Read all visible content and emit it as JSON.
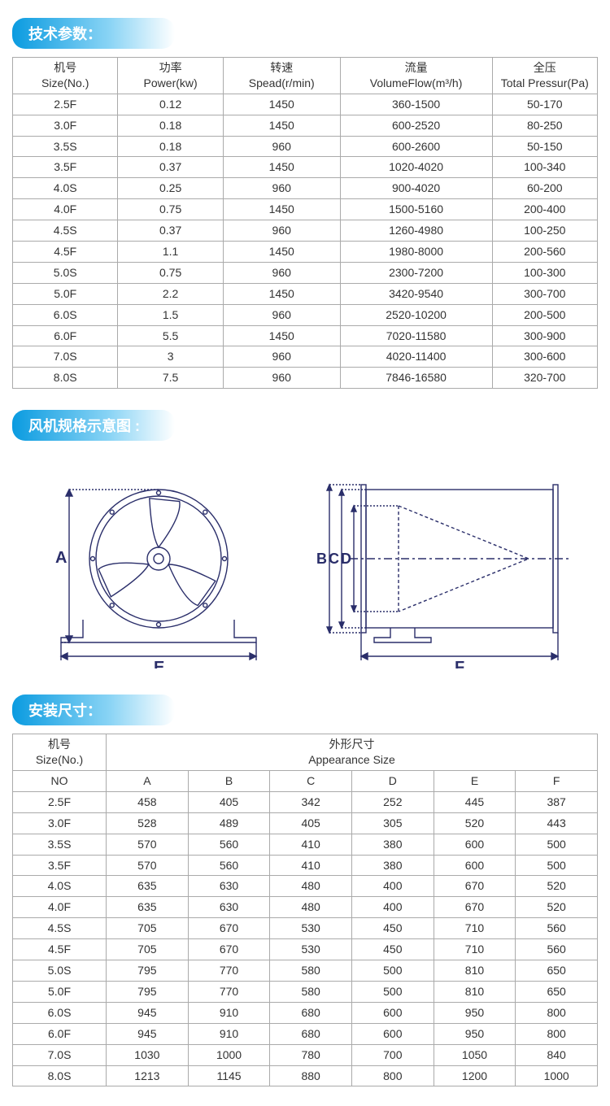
{
  "headers": {
    "tech_params": "技术参数：",
    "fan_diagram": "风机规格示意图 :",
    "install_dims": "安装尺寸："
  },
  "spec_table": {
    "columns": [
      {
        "cn": "机号",
        "en": "Size(No.)"
      },
      {
        "cn": "功率",
        "en": "Power(kw)"
      },
      {
        "cn": "转速",
        "en": "Spead(r/min)"
      },
      {
        "cn": "流量",
        "en": "VolumeFlow(m³/h)"
      },
      {
        "cn": "全压",
        "en": "Total Pressur(Pa)"
      }
    ],
    "rows": [
      [
        "2.5F",
        "0.12",
        "1450",
        "360-1500",
        "50-170"
      ],
      [
        "3.0F",
        "0.18",
        "1450",
        "600-2520",
        "80-250"
      ],
      [
        "3.5S",
        "0.18",
        "960",
        "600-2600",
        "50-150"
      ],
      [
        "3.5F",
        "0.37",
        "1450",
        "1020-4020",
        "100-340"
      ],
      [
        "4.0S",
        "0.25",
        "960",
        "900-4020",
        "60-200"
      ],
      [
        "4.0F",
        "0.75",
        "1450",
        "1500-5160",
        "200-400"
      ],
      [
        "4.5S",
        "0.37",
        "960",
        "1260-4980",
        "100-250"
      ],
      [
        "4.5F",
        "1.1",
        "1450",
        "1980-8000",
        "200-560"
      ],
      [
        "5.0S",
        "0.75",
        "960",
        "2300-7200",
        "100-300"
      ],
      [
        "5.0F",
        "2.2",
        "1450",
        "3420-9540",
        "300-700"
      ],
      [
        "6.0S",
        "1.5",
        "960",
        "2520-10200",
        "200-500"
      ],
      [
        "6.0F",
        "5.5",
        "1450",
        "7020-11580",
        "300-900"
      ],
      [
        "7.0S",
        "3",
        "960",
        "4020-11400",
        "300-600"
      ],
      [
        "8.0S",
        "7.5",
        "960",
        "7846-16580",
        "320-700"
      ]
    ],
    "col_widths_pct": [
      18,
      18,
      20,
      26,
      18
    ]
  },
  "dims_table": {
    "header_row1": {
      "col1_cn": "机号",
      "col1_en": "Size(No.)",
      "span_cn": "外形尺寸",
      "span_en": "Appearance Size"
    },
    "header_row2": [
      "NO",
      "A",
      "B",
      "C",
      "D",
      "E",
      "F"
    ],
    "rows": [
      [
        "2.5F",
        "458",
        "405",
        "342",
        "252",
        "445",
        "387"
      ],
      [
        "3.0F",
        "528",
        "489",
        "405",
        "305",
        "520",
        "443"
      ],
      [
        "3.5S",
        "570",
        "560",
        "410",
        "380",
        "600",
        "500"
      ],
      [
        "3.5F",
        "570",
        "560",
        "410",
        "380",
        "600",
        "500"
      ],
      [
        "4.0S",
        "635",
        "630",
        "480",
        "400",
        "670",
        "520"
      ],
      [
        "4.0F",
        "635",
        "630",
        "480",
        "400",
        "670",
        "520"
      ],
      [
        "4.5S",
        "705",
        "670",
        "530",
        "450",
        "710",
        "560"
      ],
      [
        "4.5F",
        "705",
        "670",
        "530",
        "450",
        "710",
        "560"
      ],
      [
        "5.0S",
        "795",
        "770",
        "580",
        "500",
        "810",
        "650"
      ],
      [
        "5.0F",
        "795",
        "770",
        "580",
        "500",
        "810",
        "650"
      ],
      [
        "6.0S",
        "945",
        "910",
        "680",
        "600",
        "950",
        "800"
      ],
      [
        "6.0F",
        "945",
        "910",
        "680",
        "600",
        "950",
        "800"
      ],
      [
        "7.0S",
        "1030",
        "1000",
        "780",
        "700",
        "1050",
        "840"
      ],
      [
        "8.0S",
        "1213",
        "1145",
        "880",
        "800",
        "1200",
        "1000"
      ]
    ],
    "col_widths_pct": [
      16,
      14,
      14,
      14,
      14,
      14,
      14
    ]
  },
  "diagram": {
    "labels": {
      "A": "A",
      "B": "B",
      "C": "C",
      "D": "D",
      "E": "E",
      "F": "F"
    },
    "stroke": "#2a2e6a",
    "stroke_width": 1.4,
    "front_size": [
      280,
      250
    ],
    "side_size": [
      340,
      250
    ]
  },
  "colors": {
    "header_grad_start": "#0a9be0",
    "header_grad_end": "#ffffff",
    "table_border": "#aaaaaa",
    "text": "#333333"
  }
}
